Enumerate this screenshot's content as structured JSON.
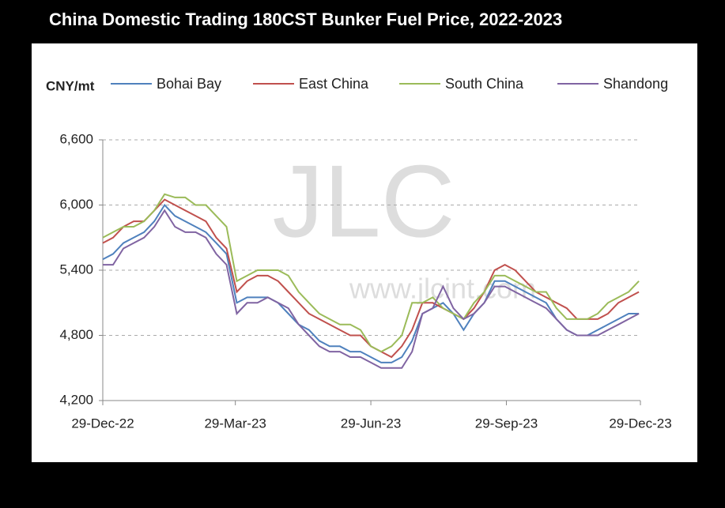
{
  "chart_data": {
    "type": "line",
    "title": "China Domestic Trading 180CST Bunker Fuel Price, 2022-2023",
    "y_label": "CNY/mt",
    "watermark": "JLC",
    "watermark_url": "www.jlcint.com",
    "x": [
      "2022-12-29",
      "2023-01-05",
      "2023-01-12",
      "2023-01-19",
      "2023-01-26",
      "2023-02-02",
      "2023-02-09",
      "2023-02-16",
      "2023-02-23",
      "2023-03-02",
      "2023-03-09",
      "2023-03-16",
      "2023-03-23",
      "2023-03-30",
      "2023-04-06",
      "2023-04-13",
      "2023-04-20",
      "2023-04-27",
      "2023-05-04",
      "2023-05-11",
      "2023-05-18",
      "2023-05-25",
      "2023-06-01",
      "2023-06-08",
      "2023-06-15",
      "2023-06-22",
      "2023-06-29",
      "2023-07-06",
      "2023-07-13",
      "2023-07-20",
      "2023-07-27",
      "2023-08-03",
      "2023-08-10",
      "2023-08-17",
      "2023-08-24",
      "2023-08-31",
      "2023-09-07",
      "2023-09-14",
      "2023-09-21",
      "2023-09-28",
      "2023-10-05",
      "2023-10-12",
      "2023-10-19",
      "2023-10-26",
      "2023-11-02",
      "2023-11-09",
      "2023-11-16",
      "2023-11-23",
      "2023-11-30",
      "2023-12-07",
      "2023-12-14",
      "2023-12-21",
      "2023-12-28"
    ],
    "series": [
      {
        "name": "Bohai Bay",
        "color": "#4f81bd",
        "values": [
          5500,
          5550,
          5650,
          5700,
          5750,
          5850,
          6000,
          5900,
          5850,
          5800,
          5750,
          5650,
          5550,
          5100,
          5150,
          5150,
          5150,
          5100,
          5000,
          4900,
          4850,
          4750,
          4700,
          4700,
          4650,
          4650,
          4600,
          4550,
          4550,
          4600,
          4750,
          5000,
          5050,
          5100,
          5000,
          4850,
          5000,
          5100,
          5300,
          5300,
          5250,
          5200,
          5150,
          5100,
          4950,
          4850,
          4800,
          4800,
          4850,
          4900,
          4950,
          5000,
          5000
        ]
      },
      {
        "name": "East China",
        "color": "#c0504d",
        "values": [
          5650,
          5700,
          5800,
          5850,
          5850,
          5950,
          6050,
          6000,
          5950,
          5900,
          5850,
          5700,
          5600,
          5200,
          5300,
          5350,
          5350,
          5300,
          5200,
          5100,
          5000,
          4950,
          4900,
          4850,
          4800,
          4800,
          4700,
          4650,
          4600,
          4700,
          4850,
          5100,
          5100,
          5050,
          5000,
          4950,
          5050,
          5200,
          5400,
          5450,
          5400,
          5300,
          5200,
          5150,
          5100,
          5050,
          4950,
          4950,
          4950,
          5000,
          5100,
          5150,
          5200
        ]
      },
      {
        "name": "South China",
        "color": "#9bbb59",
        "values": [
          5700,
          5750,
          5800,
          5800,
          5850,
          5950,
          6100,
          6070,
          6070,
          6000,
          6000,
          5900,
          5800,
          5300,
          5350,
          5400,
          5400,
          5400,
          5350,
          5200,
          5100,
          5000,
          4950,
          4900,
          4900,
          4850,
          4700,
          4650,
          4700,
          4800,
          5100,
          5100,
          5150,
          5050,
          5000,
          4950,
          5100,
          5200,
          5350,
          5350,
          5300,
          5250,
          5200,
          5200,
          5050,
          4950,
          4950,
          4950,
          5000,
          5100,
          5150,
          5200,
          5300
        ]
      },
      {
        "name": "Shandong",
        "color": "#8064a2",
        "values": [
          5450,
          5450,
          5600,
          5650,
          5700,
          5800,
          5950,
          5800,
          5750,
          5750,
          5700,
          5550,
          5450,
          5000,
          5100,
          5100,
          5150,
          5100,
          5050,
          4900,
          4800,
          4700,
          4650,
          4650,
          4600,
          4600,
          4550,
          4500,
          4500,
          4500,
          4650,
          5000,
          5050,
          5250,
          5050,
          4950,
          5000,
          5100,
          5250,
          5250,
          5200,
          5150,
          5100,
          5050,
          4950,
          4850,
          4800,
          4800,
          4800,
          4850,
          4900,
          4950,
          5000
        ]
      }
    ],
    "xlim": [
      "2022-12-29",
      "2023-12-29"
    ],
    "xticks": [
      {
        "value": "2022-12-29",
        "label": "29-Dec-22"
      },
      {
        "value": "2023-03-29",
        "label": "29-Mar-23"
      },
      {
        "value": "2023-06-29",
        "label": "29-Jun-23"
      },
      {
        "value": "2023-09-29",
        "label": "29-Sep-23"
      },
      {
        "value": "2023-12-29",
        "label": "29-Dec-23"
      }
    ],
    "ylim": [
      4200,
      6600
    ],
    "yticks": [
      {
        "value": 4200,
        "label": "4,200"
      },
      {
        "value": 4800,
        "label": "4,800"
      },
      {
        "value": 5400,
        "label": "5,400"
      },
      {
        "value": 6000,
        "label": "6,000"
      },
      {
        "value": 6600,
        "label": "6,600"
      }
    ],
    "grid": true,
    "legend": "top"
  }
}
